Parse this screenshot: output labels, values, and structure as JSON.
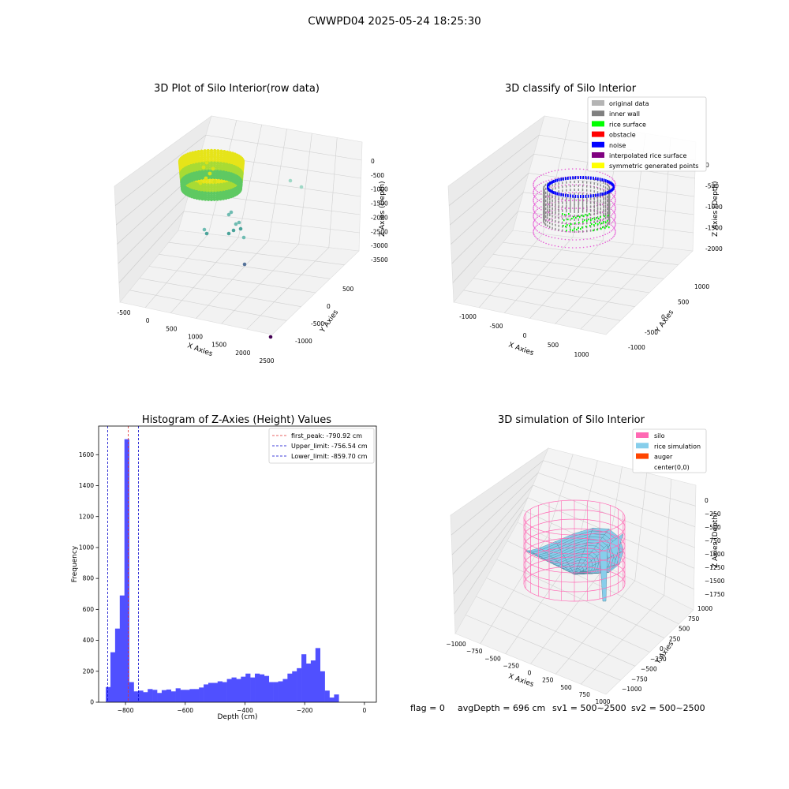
{
  "figure": {
    "suptitle": "CWWPD04 2025-05-24 18:25:30",
    "footer": {
      "flag": "flag = 0",
      "avg": "avgDepth = 696 cm",
      "sv1": "sv1 = 500~2500",
      "sv2": "sv2 = 500~2500"
    }
  },
  "chart_data": [
    {
      "id": "raw",
      "type": "scatter",
      "projection": "3d",
      "title": "3D Plot of Silo Interior(row data)",
      "xlabel": "X Axies",
      "ylabel": "Y Axies",
      "zlabel": "Z Axies (Depth)",
      "xticks": [
        "-500",
        "0",
        "500",
        "1000",
        "1500",
        "2000",
        "2500"
      ],
      "yticks": [
        "-1000",
        "-500",
        "0",
        "500"
      ],
      "zticks": [
        "0",
        "-500",
        "-1000",
        "-1500",
        "-2000",
        "-2500",
        "-3000",
        "-3500"
      ],
      "xlim": [
        -600,
        2600
      ],
      "ylim": [
        -1200,
        700
      ],
      "zlim": [
        -3700,
        100
      ],
      "colormap": "viridis",
      "ring": {
        "cx": 300,
        "cy": 0,
        "r": 550,
        "z_top": -300,
        "z_bottom": -900
      },
      "outliers": [
        {
          "x": 1800,
          "y": 500,
          "z": -700
        },
        {
          "x": 1950,
          "y": 400,
          "z": -900
        },
        {
          "x": 850,
          "y": -250,
          "z": -1800
        },
        {
          "x": 900,
          "y": -200,
          "z": -1750
        },
        {
          "x": 1000,
          "y": -300,
          "z": -2100
        },
        {
          "x": 1050,
          "y": -200,
          "z": -2050
        },
        {
          "x": 1000,
          "y": -450,
          "z": -2250
        },
        {
          "x": 900,
          "y": -400,
          "z": -2350
        },
        {
          "x": 650,
          "y": -350,
          "z": -2300
        },
        {
          "x": 700,
          "y": -450,
          "z": -2400
        },
        {
          "x": 1100,
          "y": -500,
          "z": -2450
        },
        {
          "x": 1200,
          "y": -300,
          "z": -2350
        },
        {
          "x": 1500,
          "y": -500,
          "z": -3000
        },
        {
          "x": 2500,
          "y": -1200,
          "z": -3500
        }
      ]
    },
    {
      "id": "classify",
      "type": "scatter",
      "projection": "3d",
      "title": "3D classify of Silo Interior",
      "xlabel": "X Axies",
      "ylabel": "Y Axies",
      "zlabel": "Z Axies (Depth)",
      "xticks": [
        "-1000",
        "-500",
        "0",
        "500",
        "1000"
      ],
      "yticks": [
        "-1000",
        "-500",
        "0",
        "500",
        "1000"
      ],
      "zticks": [
        "0",
        "-500",
        "-1000",
        "-1500",
        "-2000"
      ],
      "legend": [
        {
          "label": "original data",
          "color": "#b4b4b4"
        },
        {
          "label": "inner wall",
          "color": "#808080"
        },
        {
          "label": "rice surface",
          "color": "#00ff00"
        },
        {
          "label": "obstacle",
          "color": "#ff0000"
        },
        {
          "label": "noise",
          "color": "#0000ff"
        },
        {
          "label": "interpolated rice surface",
          "color": "#800080"
        },
        {
          "label": "symmetric generated points",
          "color": "#ffff00"
        }
      ]
    },
    {
      "id": "hist",
      "type": "bar",
      "title": "Histogram of Z-Axies (Height) Values",
      "xlabel": "Depth (cm)",
      "ylabel": "Frequency",
      "xlim": [
        -890,
        40
      ],
      "ylim": [
        0,
        1785
      ],
      "xticks": [
        -800,
        -600,
        -400,
        -200,
        0
      ],
      "xtick_labels": [
        "−800",
        "−600",
        "−400",
        "−200",
        "0"
      ],
      "yticks": [
        0,
        200,
        400,
        600,
        800,
        1000,
        1200,
        1400,
        1600
      ],
      "bar_color": "#5050ff",
      "bin_start": -866,
      "bin_width": 15.6,
      "values": [
        98,
        323,
        476,
        690,
        1700,
        130,
        70,
        75,
        65,
        85,
        80,
        60,
        78,
        82,
        70,
        90,
        80,
        80,
        85,
        85,
        95,
        115,
        125,
        125,
        135,
        130,
        150,
        160,
        150,
        165,
        185,
        160,
        185,
        180,
        170,
        130,
        130,
        135,
        150,
        185,
        200,
        220,
        310,
        250,
        270,
        350,
        200,
        75,
        30,
        50
      ],
      "lines": [
        {
          "label": "first_peak: -790.92 cm",
          "x": -790.92,
          "color": "#e03030"
        },
        {
          "label": "Upper_limit: -756.54 cm",
          "x": -756.54,
          "color": "#0000cc"
        },
        {
          "label": "Lower_limit: -859.70 cm",
          "x": -859.7,
          "color": "#0000cc"
        }
      ]
    },
    {
      "id": "sim",
      "type": "surface",
      "projection": "3d",
      "title": "3D simulation of Silo Interior",
      "xlabel": "X Axies",
      "ylabel": "Y Axies",
      "zlabel": "Z Axies (Depth)",
      "xticks": [
        "−1000",
        "−750",
        "−500",
        "−250",
        "0",
        "250",
        "500",
        "750",
        "1000"
      ],
      "yticks": [
        "−1000",
        "−750",
        "−500",
        "−250",
        "0",
        "250",
        "500",
        "750",
        "1000"
      ],
      "zticks": [
        "0",
        "−250",
        "−500",
        "−750",
        "−1000",
        "−1250",
        "−1500",
        "−1750"
      ],
      "legend": [
        {
          "label": "silo",
          "color": "#ff69b4"
        },
        {
          "label": "rice simulation",
          "color": "#87ceeb"
        },
        {
          "label": "auger",
          "color": "#ff4500"
        },
        {
          "label": "center(0,0)",
          "color": "#ffffff"
        }
      ]
    }
  ]
}
